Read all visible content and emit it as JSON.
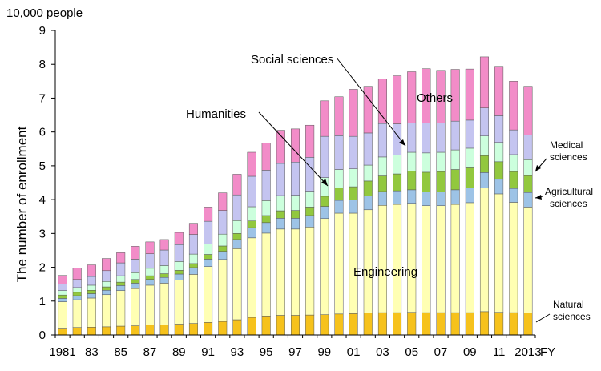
{
  "chart_data": {
    "type": "bar",
    "stacked": true,
    "y_unit": "10,000 people",
    "ylabel": "The number of enrollment",
    "xlabel": "FY",
    "ylim": [
      0,
      9
    ],
    "yticks": [
      "0",
      "1",
      "2",
      "3",
      "4",
      "5",
      "6",
      "7",
      "8",
      "9"
    ],
    "categories": [
      "1981",
      "82",
      "83",
      "84",
      "85",
      "86",
      "87",
      "88",
      "89",
      "90",
      "91",
      "92",
      "93",
      "94",
      "95",
      "96",
      "97",
      "98",
      "99",
      "00",
      "01",
      "02",
      "03",
      "04",
      "05",
      "06",
      "07",
      "08",
      "09",
      "10",
      "11",
      "12",
      "2013"
    ],
    "xtick_labels": [
      "1981",
      "",
      "83",
      "",
      "85",
      "",
      "87",
      "",
      "89",
      "",
      "91",
      "",
      "93",
      "",
      "95",
      "",
      "97",
      "",
      "99",
      "",
      "01",
      "",
      "03",
      "",
      "05",
      "",
      "07",
      "",
      "09",
      "",
      "11",
      "",
      "2013"
    ],
    "grid": false,
    "series": [
      {
        "name": "Natural sciences",
        "color": "#f6c21c",
        "values": [
          0.2,
          0.22,
          0.23,
          0.24,
          0.26,
          0.27,
          0.29,
          0.3,
          0.32,
          0.34,
          0.37,
          0.4,
          0.45,
          0.52,
          0.56,
          0.58,
          0.58,
          0.59,
          0.6,
          0.62,
          0.63,
          0.65,
          0.66,
          0.66,
          0.67,
          0.66,
          0.66,
          0.66,
          0.66,
          0.69,
          0.67,
          0.66,
          0.65
        ]
      },
      {
        "name": "Engineering",
        "color": "#ffffb3",
        "values": [
          0.78,
          0.82,
          0.86,
          0.95,
          1.05,
          1.1,
          1.18,
          1.23,
          1.3,
          1.45,
          1.65,
          1.83,
          2.1,
          2.35,
          2.45,
          2.55,
          2.55,
          2.6,
          2.84,
          2.98,
          2.97,
          3.05,
          3.17,
          3.2,
          3.22,
          3.16,
          3.16,
          3.2,
          3.25,
          3.65,
          3.5,
          3.26,
          3.13
        ]
      },
      {
        "name": "Agricultural sciences",
        "color": "#9dc3e6",
        "values": [
          0.1,
          0.12,
          0.13,
          0.13,
          0.15,
          0.16,
          0.17,
          0.17,
          0.18,
          0.2,
          0.22,
          0.24,
          0.27,
          0.3,
          0.31,
          0.32,
          0.32,
          0.34,
          0.36,
          0.38,
          0.39,
          0.41,
          0.41,
          0.4,
          0.4,
          0.41,
          0.41,
          0.43,
          0.43,
          0.46,
          0.43,
          0.41,
          0.43
        ]
      },
      {
        "name": "Medical sciences",
        "color": "#92c83e",
        "values": [
          0.1,
          0.1,
          0.1,
          0.1,
          0.1,
          0.11,
          0.11,
          0.11,
          0.11,
          0.12,
          0.14,
          0.16,
          0.18,
          0.2,
          0.21,
          0.22,
          0.23,
          0.25,
          0.3,
          0.36,
          0.39,
          0.44,
          0.46,
          0.5,
          0.55,
          0.58,
          0.6,
          0.6,
          0.6,
          0.5,
          0.52,
          0.5,
          0.5
        ]
      },
      {
        "name": "Others",
        "color": "#ccffdd",
        "values": [
          0.13,
          0.14,
          0.15,
          0.16,
          0.19,
          0.2,
          0.22,
          0.24,
          0.26,
          0.28,
          0.31,
          0.35,
          0.38,
          0.42,
          0.44,
          0.45,
          0.45,
          0.47,
          0.55,
          0.55,
          0.53,
          0.47,
          0.56,
          0.56,
          0.56,
          0.57,
          0.57,
          0.58,
          0.58,
          0.58,
          0.57,
          0.5,
          0.47
        ]
      },
      {
        "name": "Social sciences",
        "color": "#c4c4f0",
        "values": [
          0.2,
          0.24,
          0.26,
          0.32,
          0.38,
          0.4,
          0.43,
          0.46,
          0.5,
          0.58,
          0.67,
          0.7,
          0.76,
          0.9,
          0.9,
          0.95,
          0.98,
          1.0,
          1.22,
          1.0,
          0.96,
          0.95,
          0.99,
          0.92,
          0.87,
          0.88,
          0.86,
          0.85,
          0.83,
          0.83,
          0.79,
          0.73,
          0.73
        ]
      },
      {
        "name": "Humanities",
        "color": "#f28cc8",
        "values": [
          0.25,
          0.34,
          0.34,
          0.36,
          0.3,
          0.38,
          0.35,
          0.31,
          0.36,
          0.33,
          0.42,
          0.52,
          0.61,
          0.71,
          0.8,
          0.98,
          0.98,
          0.95,
          1.05,
          1.15,
          1.39,
          1.38,
          1.32,
          1.42,
          1.51,
          1.61,
          1.56,
          1.53,
          1.51,
          1.51,
          1.46,
          1.44,
          1.44
        ]
      }
    ],
    "annotations": {
      "social_sciences": "Social sciences",
      "humanities": "Humanities",
      "others": "Others",
      "engineering": "Engineering",
      "medical": [
        "Medical",
        "sciences"
      ],
      "agricultural": [
        "Agricultural",
        "sciences"
      ],
      "natural": [
        "Natural",
        "sciences"
      ]
    }
  }
}
